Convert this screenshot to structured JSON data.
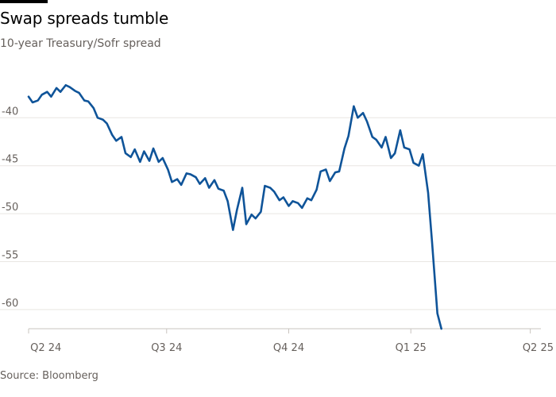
{
  "title": "Swap spreads tumble",
  "subtitle": "10-year Treasury/Sofr spread",
  "source": "Source: Bloomberg",
  "colors": {
    "line": "#0f5499",
    "grid": "#e9e6e2",
    "axis": "#c9c4bf",
    "text": "#66605c",
    "title": "#000000"
  },
  "chart_data": {
    "type": "line",
    "title": "Swap spreads tumble",
    "subtitle": "10-year Treasury/Sofr spread",
    "ylim": [
      -62,
      -36
    ],
    "yticks": [
      -40,
      -45,
      -50,
      -55,
      -60
    ],
    "ytick_labels": [
      "-40",
      "-45",
      "-50",
      "-55",
      "-60"
    ],
    "x_range": [
      "2024-03-19",
      "2025-04-09"
    ],
    "xticks": [
      {
        "date": "2024-04-01",
        "label": "Q2 24"
      },
      {
        "date": "2024-07-01",
        "label": "Q3 24"
      },
      {
        "date": "2024-10-01",
        "label": "Q4 24"
      },
      {
        "date": "2025-01-01",
        "label": "Q1 25"
      },
      {
        "date": "2025-04-01",
        "label": "Q2 25"
      }
    ],
    "grid": true,
    "legend": "none",
    "series": [
      {
        "color": "#0f5499",
        "x": [
          "2024-03-19",
          "2024-03-22",
          "2024-03-26",
          "2024-03-29",
          "2024-04-02",
          "2024-04-05",
          "2024-04-09",
          "2024-04-12",
          "2024-04-16",
          "2024-04-19",
          "2024-04-23",
          "2024-04-26",
          "2024-04-30",
          "2024-05-03",
          "2024-05-07",
          "2024-05-10",
          "2024-05-14",
          "2024-05-17",
          "2024-05-21",
          "2024-05-24",
          "2024-05-28",
          "2024-05-31",
          "2024-06-04",
          "2024-06-07",
          "2024-06-11",
          "2024-06-14",
          "2024-06-18",
          "2024-06-21",
          "2024-06-25",
          "2024-06-28",
          "2024-07-02",
          "2024-07-05",
          "2024-07-09",
          "2024-07-12",
          "2024-07-16",
          "2024-07-19",
          "2024-07-23",
          "2024-07-26",
          "2024-07-30",
          "2024-08-02",
          "2024-08-06",
          "2024-08-09",
          "2024-08-13",
          "2024-08-16",
          "2024-08-20",
          "2024-08-23",
          "2024-08-27",
          "2024-08-30",
          "2024-09-03",
          "2024-09-06",
          "2024-09-10",
          "2024-09-13",
          "2024-09-17",
          "2024-09-20",
          "2024-09-24",
          "2024-09-27",
          "2024-10-01",
          "2024-10-04",
          "2024-10-08",
          "2024-10-11",
          "2024-10-15",
          "2024-10-18",
          "2024-10-22",
          "2024-10-25",
          "2024-10-29",
          "2024-11-01",
          "2024-11-05",
          "2024-11-08",
          "2024-11-12",
          "2024-11-15",
          "2024-11-19",
          "2024-11-22",
          "2024-11-26",
          "2024-11-29",
          "2024-12-03",
          "2024-12-06",
          "2024-12-10",
          "2024-12-13",
          "2024-12-17",
          "2024-12-20",
          "2024-12-24",
          "2024-12-27",
          "2024-12-31",
          "2025-01-03",
          "2025-01-07",
          "2025-01-10",
          "2025-01-14",
          "2025-01-17",
          "2025-01-21",
          "2025-01-24",
          "2025-01-28",
          "2025-01-31",
          "2025-02-04",
          "2025-02-07",
          "2025-02-11",
          "2025-02-14",
          "2025-02-18",
          "2025-02-21",
          "2025-02-25",
          "2025-02-28",
          "2025-03-04",
          "2025-03-07",
          "2025-03-11",
          "2025-03-14",
          "2025-03-18",
          "2025-03-21",
          "2025-03-25",
          "2025-03-28",
          "2025-04-01",
          "2025-04-03",
          "2025-04-07",
          "2025-04-09"
        ],
        "values": [
          -37.8,
          -38.4,
          -38.2,
          -37.6,
          -37.3,
          -37.8,
          -36.9,
          -37.3,
          -36.6,
          -36.8,
          -37.2,
          -37.4,
          -38.2,
          -38.3,
          -39.0,
          -40.0,
          -40.2,
          -40.6,
          -41.8,
          -42.4,
          -42.0,
          -43.7,
          -44.1,
          -43.3,
          -44.6,
          -43.5,
          -44.5,
          -43.2,
          -44.6,
          -44.2,
          -45.4,
          -46.7,
          -46.4,
          -47.0,
          -45.8,
          -45.9,
          -46.2,
          -46.9,
          -46.3,
          -47.3,
          -46.5,
          -47.4,
          -47.6,
          -48.7,
          -51.7,
          -49.6,
          -47.3,
          -51.1,
          -50.1,
          -50.5,
          -49.8,
          -47.1,
          -47.3,
          -47.7,
          -48.6,
          -48.3,
          -49.2,
          -48.7,
          -48.9,
          -49.4,
          -48.4,
          -48.6,
          -47.5,
          -45.6,
          -45.4,
          -46.6,
          -45.7,
          -45.6,
          -43.2,
          -41.9,
          -38.8,
          -40.0,
          -39.5,
          -40.4,
          -42.0,
          -42.3,
          -43.1,
          -42.0,
          -44.2,
          -43.7,
          -41.3,
          -43.1,
          -43.3,
          -44.7,
          -45.0,
          -43.8,
          -47.8,
          -53.0,
          -60.4,
          -62.0,
          -62.0,
          -62.0,
          -62.0,
          -62.0,
          -62.0,
          -62.0,
          -62.0,
          -62.0,
          -62.0,
          -62.0,
          -62.0,
          -62.0,
          -62.0,
          -62.0,
          -62.0,
          -62.0,
          -62.0,
          -62.0,
          -62.0,
          -62.0,
          -62.0,
          -62.0
        ]
      }
    ]
  }
}
